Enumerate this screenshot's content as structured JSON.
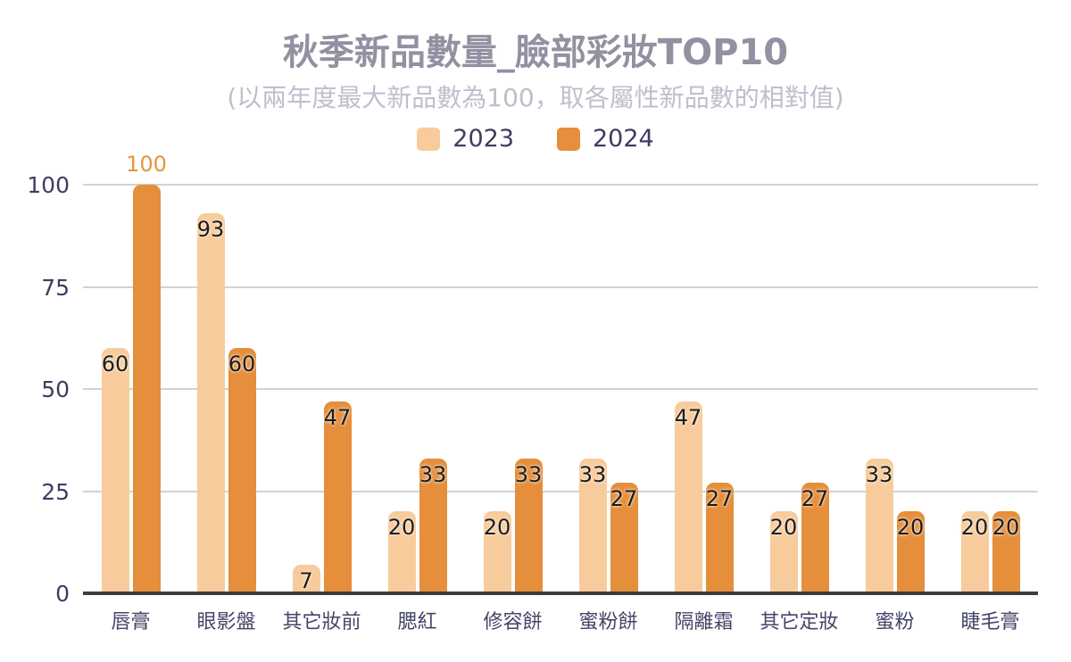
{
  "header": {
    "title": "秋季新品數量_臉部彩妝TOP10",
    "subtitle": "(以兩年度最大新品數為100，取各屬性新品數的相對值)"
  },
  "chart_data": {
    "type": "bar",
    "title": "秋季新品數量_臉部彩妝TOP10",
    "subtitle": "(以兩年度最大新品數為100，取各屬性新品數的相對值)",
    "categories": [
      "唇膏",
      "眼影盤",
      "其它妝前",
      "腮紅",
      "修容餅",
      "蜜粉餅",
      "隔離霜",
      "其它定妝",
      "蜜粉",
      "睫毛膏"
    ],
    "series": [
      {
        "name": "2023",
        "color": "#F8CB9C",
        "values": [
          60,
          93,
          7,
          20,
          20,
          33,
          47,
          20,
          33,
          20
        ]
      },
      {
        "name": "2024",
        "color": "#E58E3B",
        "values": [
          100,
          60,
          47,
          33,
          33,
          27,
          27,
          27,
          20,
          20
        ]
      }
    ],
    "ylim": [
      0,
      100
    ],
    "yticks": [
      0,
      25,
      50,
      75,
      100
    ],
    "grid": true,
    "legend_position": "top",
    "value_labels": "inside-top",
    "max_value_label": {
      "value": 100,
      "position": "above",
      "color": "#E8953C"
    }
  },
  "colors": {
    "title": "#9191A1",
    "subtitle": "#BFBFCC",
    "axis_text": "#3D3D60",
    "category_text": "#45456A",
    "value_label": "#1C1C1C",
    "gridline": "#D2D2D2",
    "axis_line": "#3C3C3C",
    "background": "#FFFFFF"
  }
}
